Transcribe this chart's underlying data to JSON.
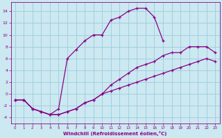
{
  "xlabel": "Windchill (Refroidissement éolien,°C)",
  "bg_color": "#cce8f0",
  "grid_color": "#99ccdd",
  "line_color": "#880088",
  "xlim": [
    -0.5,
    23.5
  ],
  "ylim": [
    -5,
    15.5
  ],
  "xticks": [
    0,
    1,
    2,
    3,
    4,
    5,
    6,
    7,
    8,
    9,
    10,
    11,
    12,
    13,
    14,
    15,
    16,
    17,
    18,
    19,
    20,
    21,
    22,
    23
  ],
  "yticks": [
    -4,
    -2,
    0,
    2,
    4,
    6,
    8,
    10,
    12,
    14
  ],
  "curve1_x": [
    0,
    1,
    2,
    3,
    4,
    5,
    6,
    7,
    8,
    9,
    10,
    11,
    12,
    13,
    14,
    15,
    16,
    17,
    18,
    19,
    20,
    21,
    22,
    23
  ],
  "curve1_y": [
    -1,
    -1,
    -2.5,
    -3,
    -3.5,
    -2.5,
    6,
    7.5,
    9,
    10,
    10,
    12.5,
    13,
    14,
    14.5,
    14.5,
    13,
    9,
    null,
    null,
    null,
    null,
    null,
    null
  ],
  "curve2_x": [
    0,
    1,
    2,
    3,
    4,
    5,
    6,
    7,
    8,
    9,
    10,
    11,
    12,
    13,
    14,
    15,
    16,
    17,
    18,
    19,
    20,
    21,
    22,
    23
  ],
  "curve2_y": [
    -1,
    -1,
    -2.5,
    -3,
    -3.5,
    -3.5,
    -3,
    -2.5,
    -1.5,
    -1,
    0,
    1.5,
    2.5,
    3.5,
    4.5,
    5,
    5.5,
    6.5,
    7,
    7,
    8,
    8,
    8,
    7
  ],
  "curve3_x": [
    0,
    1,
    2,
    3,
    4,
    5,
    6,
    7,
    8,
    9,
    10,
    11,
    12,
    13,
    14,
    15,
    16,
    17,
    18,
    19,
    20,
    21,
    22,
    23
  ],
  "curve3_y": [
    -1,
    -1,
    -2.5,
    -3,
    -3.5,
    -3.5,
    -3,
    -2.5,
    -1.5,
    -1,
    0,
    0.5,
    1,
    1.5,
    2,
    2.5,
    3,
    3.5,
    4,
    4.5,
    5,
    5.5,
    6,
    5.5
  ]
}
